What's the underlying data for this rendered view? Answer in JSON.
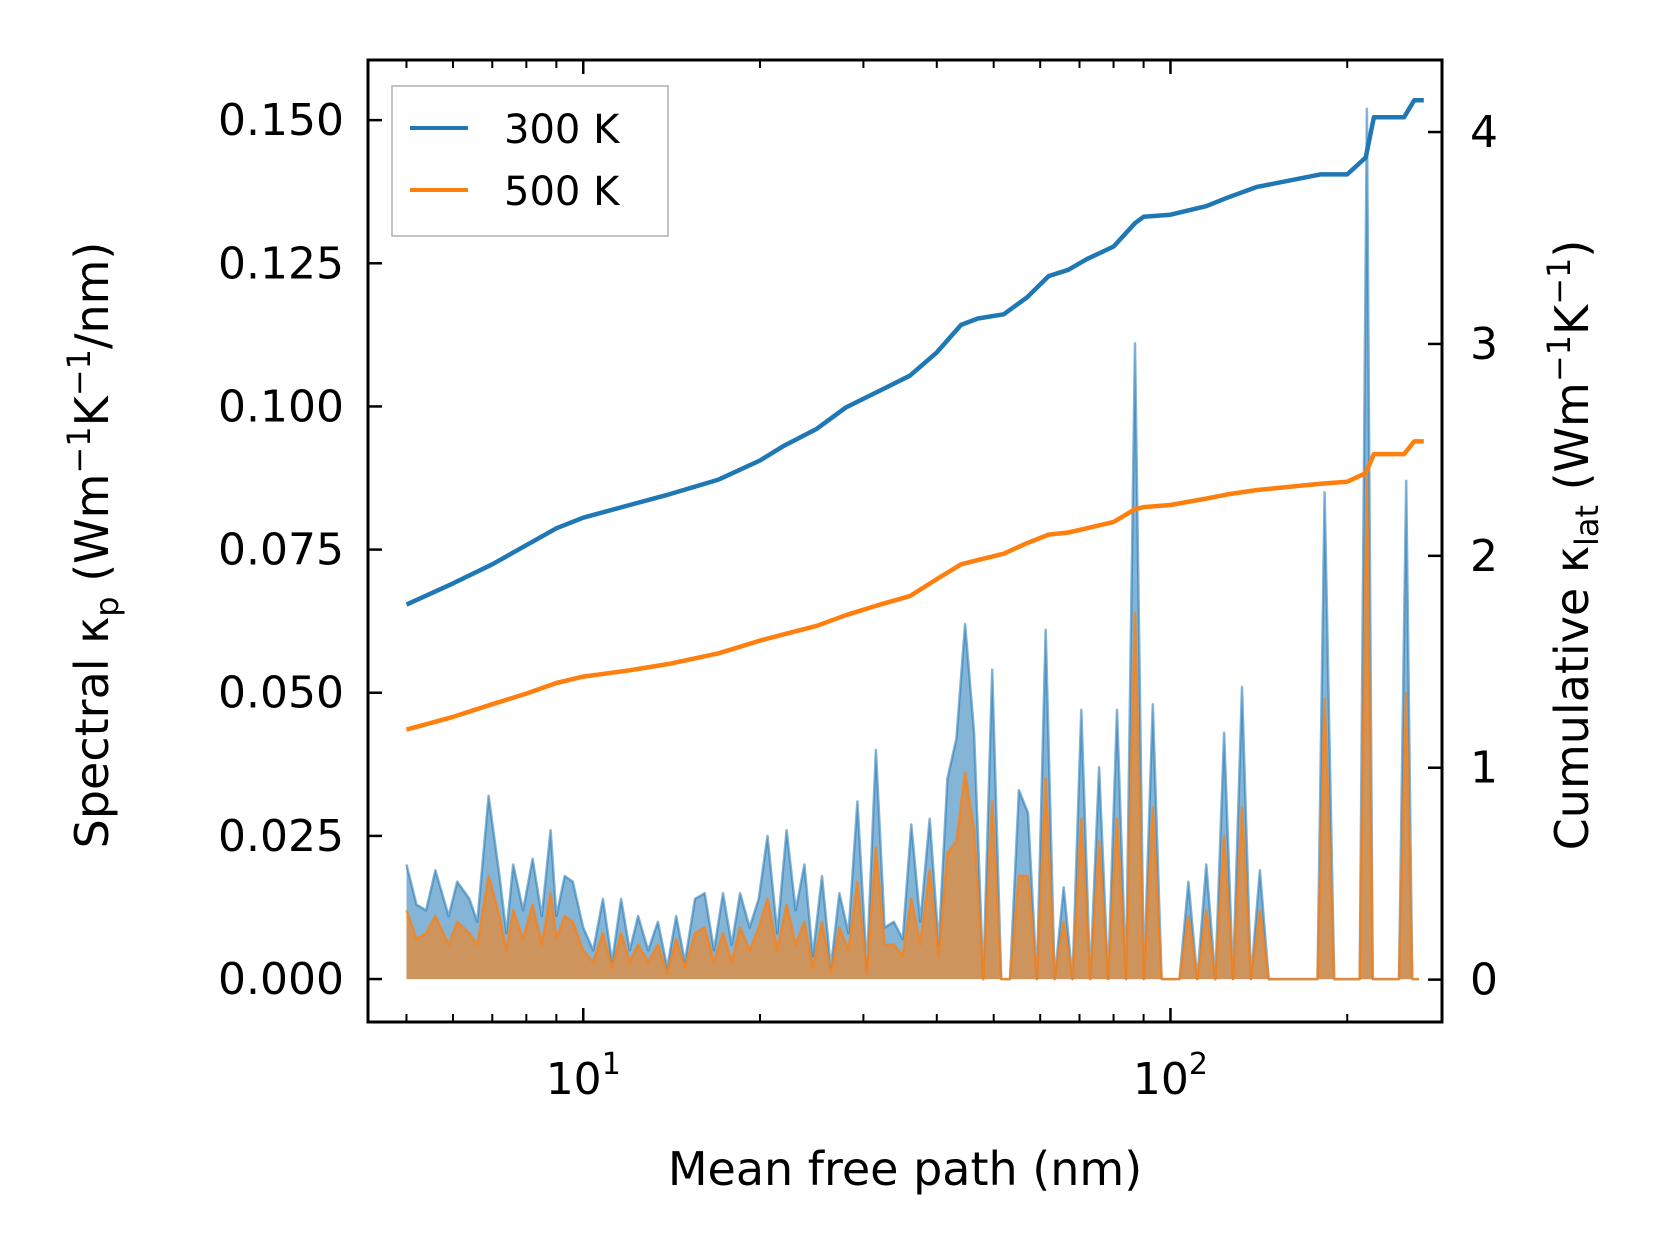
{
  "chart_data": {
    "type": "line",
    "xscale": "log",
    "xlabel": "Mean free path (nm)",
    "ylabel_left": "Spectral κp (Wm−1K−1/nm)",
    "ylabel_right": "Cumulative κlat (Wm−1K−1)",
    "ylabel_left_parts": {
      "a": "Spectral κ",
      "sub": "p",
      "b": " (Wm",
      "sup1": "−1",
      "c": "K",
      "sup2": "−1",
      "d": "/nm)"
    },
    "ylabel_right_parts": {
      "a": "Cumulative κ",
      "sub": "lat",
      "b": " (Wm",
      "sup1": "−1",
      "c": "K",
      "sup2": "−1",
      "d": ")"
    },
    "xlim": [
      4.3,
      290
    ],
    "ylim_left": [
      -0.0075,
      0.1605
    ],
    "ylim_right": [
      -0.2,
      4.34
    ],
    "x_major_ticks": [
      10,
      100
    ],
    "x_tick_labels": [
      {
        "base": "10",
        "exp": "1"
      },
      {
        "base": "10",
        "exp": "2"
      }
    ],
    "y_left_ticks": [
      0,
      0.025,
      0.05,
      0.075,
      0.1,
      0.125,
      0.15
    ],
    "y_left_tick_labels": [
      "0.000",
      "0.025",
      "0.050",
      "0.075",
      "0.100",
      "0.125",
      "0.150"
    ],
    "y_right_ticks": [
      0,
      1,
      2,
      3,
      4
    ],
    "y_right_tick_labels": [
      "0",
      "1",
      "2",
      "3",
      "4"
    ],
    "legend": {
      "position": "top-left",
      "entries": [
        {
          "label": "300 K",
          "color": "#1f77b4"
        },
        {
          "label": "500 K",
          "color": "#ff7f0e"
        }
      ]
    },
    "series": [
      {
        "name": "300 K cumulative",
        "axis": "right",
        "color": "#1f77b4",
        "x": [
          5.0,
          6.0,
          7.0,
          8.0,
          9.0,
          10.0,
          12.0,
          14.0,
          17.0,
          20.0,
          22.0,
          25.0,
          28.0,
          32.0,
          36.0,
          40.0,
          44.0,
          47.0,
          52.0,
          57.0,
          62.0,
          67.0,
          72.0,
          80.0,
          87.0,
          90.0,
          100.0,
          115.0,
          125.0,
          140.0,
          180.0,
          200.0,
          215.0,
          222.0,
          250.0,
          260.0,
          270.0
        ],
        "y": [
          1.77,
          1.87,
          1.96,
          2.05,
          2.13,
          2.18,
          2.24,
          2.29,
          2.36,
          2.45,
          2.52,
          2.6,
          2.7,
          2.78,
          2.85,
          2.96,
          3.09,
          3.12,
          3.14,
          3.22,
          3.32,
          3.35,
          3.4,
          3.46,
          3.57,
          3.6,
          3.61,
          3.65,
          3.69,
          3.74,
          3.8,
          3.8,
          3.88,
          4.07,
          4.07,
          4.15,
          4.15
        ]
      },
      {
        "name": "500 K cumulative",
        "axis": "right",
        "color": "#ff7f0e",
        "x": [
          5.0,
          6.0,
          7.0,
          8.0,
          9.0,
          10.0,
          12.0,
          14.0,
          17.0,
          20.0,
          22.0,
          25.0,
          28.0,
          32.0,
          36.0,
          40.0,
          44.0,
          47.0,
          52.0,
          57.0,
          62.0,
          67.0,
          72.0,
          80.0,
          87.0,
          90.0,
          100.0,
          115.0,
          125.0,
          140.0,
          180.0,
          200.0,
          215.0,
          222.0,
          250.0,
          260.0,
          270.0
        ],
        "y": [
          1.18,
          1.24,
          1.3,
          1.35,
          1.4,
          1.43,
          1.46,
          1.49,
          1.54,
          1.6,
          1.63,
          1.67,
          1.72,
          1.77,
          1.81,
          1.89,
          1.96,
          1.98,
          2.01,
          2.06,
          2.1,
          2.11,
          2.13,
          2.16,
          2.22,
          2.23,
          2.24,
          2.27,
          2.29,
          2.31,
          2.34,
          2.35,
          2.39,
          2.48,
          2.48,
          2.54,
          2.54
        ]
      },
      {
        "name": "300 K spectral",
        "axis": "left",
        "color": "#1f77b4",
        "x": [
          5.0,
          5.2,
          5.4,
          5.6,
          5.9,
          6.1,
          6.4,
          6.6,
          6.9,
          7.2,
          7.4,
          7.6,
          7.9,
          8.2,
          8.5,
          8.8,
          9.0,
          9.3,
          9.6,
          10.0,
          10.4,
          10.8,
          11.2,
          11.6,
          12.0,
          12.4,
          12.9,
          13.4,
          13.9,
          14.4,
          14.9,
          15.5,
          16.1,
          16.7,
          17.3,
          17.9,
          18.5,
          19.2,
          19.9,
          20.6,
          21.4,
          22.2,
          23.0,
          23.8,
          24.6,
          25.5,
          26.4,
          27.3,
          28.3,
          29.3,
          30.4,
          31.5,
          32.6,
          33.8,
          35.0,
          36.2,
          37.5,
          38.9,
          40.3,
          41.7,
          43.2,
          44.7,
          46.3,
          48.0,
          49.7,
          51.5,
          53.3,
          55.2,
          57.2,
          59.2,
          61.3,
          63.5,
          65.8,
          68.1,
          70.5,
          73.0,
          75.6,
          78.3,
          81.1,
          84.0,
          87.0,
          90.1,
          93.3,
          96.6,
          100.0,
          103.6,
          107.3,
          111.1,
          115.1,
          119.2,
          123.4,
          127.8,
          132.4,
          137.1,
          142.0,
          147.0,
          152.0,
          160.0,
          170.0,
          178.0,
          183.0,
          190.0,
          200.0,
          210.0,
          216.0,
          221.0,
          226.0,
          235.0,
          245.0,
          252.0,
          258.0,
          265.0
        ],
        "y": [
          0.02,
          0.013,
          0.012,
          0.019,
          0.011,
          0.017,
          0.014,
          0.01,
          0.032,
          0.018,
          0.008,
          0.02,
          0.012,
          0.021,
          0.011,
          0.026,
          0.011,
          0.018,
          0.017,
          0.009,
          0.005,
          0.014,
          0.003,
          0.014,
          0.005,
          0.011,
          0.005,
          0.01,
          0.002,
          0.011,
          0.003,
          0.014,
          0.015,
          0.005,
          0.015,
          0.006,
          0.015,
          0.009,
          0.014,
          0.025,
          0.008,
          0.026,
          0.012,
          0.02,
          0.004,
          0.018,
          0.002,
          0.015,
          0.008,
          0.031,
          0.002,
          0.04,
          0.009,
          0.01,
          0.007,
          0.027,
          0.01,
          0.028,
          0.006,
          0.035,
          0.042,
          0.062,
          0.043,
          0.0,
          0.054,
          0.0,
          0.0,
          0.033,
          0.029,
          0.0,
          0.061,
          0.0,
          0.016,
          0.0,
          0.047,
          0.0,
          0.037,
          0.0,
          0.047,
          0.0,
          0.111,
          0.0,
          0.048,
          0.0,
          0.0,
          0.0,
          0.017,
          0.0,
          0.02,
          0.0,
          0.043,
          0.0,
          0.051,
          0.0,
          0.019,
          0.0,
          0.0,
          0.0,
          0.0,
          0.0,
          0.085,
          0.0,
          0.0,
          0.0,
          0.152,
          0.0,
          0.0,
          0.0,
          0.0,
          0.087,
          0.0,
          0.0
        ]
      },
      {
        "name": "500 K spectral",
        "axis": "left",
        "color": "#ff7f0e",
        "x": [
          5.0,
          5.2,
          5.4,
          5.6,
          5.9,
          6.1,
          6.4,
          6.6,
          6.9,
          7.2,
          7.4,
          7.6,
          7.9,
          8.2,
          8.5,
          8.8,
          9.0,
          9.3,
          9.6,
          10.0,
          10.4,
          10.8,
          11.2,
          11.6,
          12.0,
          12.4,
          12.9,
          13.4,
          13.9,
          14.4,
          14.9,
          15.5,
          16.1,
          16.7,
          17.3,
          17.9,
          18.5,
          19.2,
          19.9,
          20.6,
          21.4,
          22.2,
          23.0,
          23.8,
          24.6,
          25.5,
          26.4,
          27.3,
          28.3,
          29.3,
          30.4,
          31.5,
          32.6,
          33.8,
          35.0,
          36.2,
          37.5,
          38.9,
          40.3,
          41.7,
          43.2,
          44.7,
          46.3,
          48.0,
          49.7,
          51.5,
          53.3,
          55.2,
          57.2,
          59.2,
          61.3,
          63.5,
          65.8,
          68.1,
          70.5,
          73.0,
          75.6,
          78.3,
          81.1,
          84.0,
          87.0,
          90.1,
          93.3,
          96.6,
          100.0,
          103.6,
          107.3,
          111.1,
          115.1,
          119.2,
          123.4,
          127.8,
          132.4,
          137.1,
          142.0,
          147.0,
          152.0,
          160.0,
          170.0,
          178.0,
          183.0,
          190.0,
          200.0,
          210.0,
          216.0,
          221.0,
          226.0,
          235.0,
          245.0,
          252.0,
          258.0,
          265.0
        ],
        "y": [
          0.012,
          0.007,
          0.008,
          0.011,
          0.006,
          0.01,
          0.008,
          0.006,
          0.018,
          0.011,
          0.005,
          0.012,
          0.007,
          0.013,
          0.006,
          0.015,
          0.007,
          0.011,
          0.01,
          0.005,
          0.003,
          0.008,
          0.002,
          0.008,
          0.003,
          0.006,
          0.003,
          0.006,
          0.001,
          0.007,
          0.002,
          0.008,
          0.009,
          0.003,
          0.008,
          0.003,
          0.009,
          0.005,
          0.009,
          0.014,
          0.005,
          0.013,
          0.006,
          0.01,
          0.002,
          0.01,
          0.001,
          0.009,
          0.005,
          0.017,
          0.001,
          0.023,
          0.006,
          0.006,
          0.004,
          0.014,
          0.006,
          0.019,
          0.004,
          0.022,
          0.024,
          0.036,
          0.026,
          0.0,
          0.031,
          0.0,
          0.0,
          0.018,
          0.018,
          0.0,
          0.035,
          0.0,
          0.01,
          0.0,
          0.028,
          0.0,
          0.024,
          0.0,
          0.028,
          0.0,
          0.064,
          0.0,
          0.03,
          0.0,
          0.0,
          0.0,
          0.011,
          0.0,
          0.012,
          0.0,
          0.025,
          0.0,
          0.03,
          0.0,
          0.012,
          0.0,
          0.0,
          0.0,
          0.0,
          0.0,
          0.049,
          0.0,
          0.0,
          0.0,
          0.088,
          0.0,
          0.0,
          0.0,
          0.0,
          0.05,
          0.0,
          0.0
        ]
      }
    ]
  }
}
